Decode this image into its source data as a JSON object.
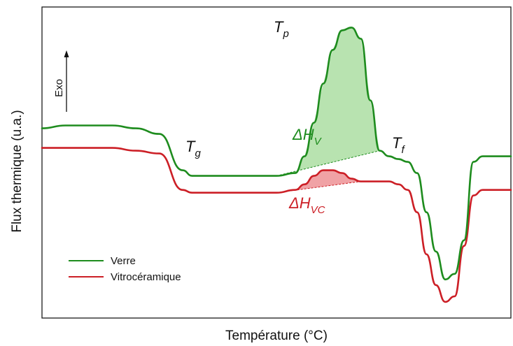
{
  "chart_data": {
    "type": "line",
    "title": "",
    "xlabel": "Température (°C)",
    "ylabel": "Flux thermique (u.a.)",
    "exo_label": "Exo",
    "x": [
      0,
      0.05,
      0.1,
      0.15,
      0.2,
      0.25,
      0.3,
      0.32,
      0.34,
      0.36,
      0.38,
      0.4,
      0.45,
      0.5,
      0.54,
      0.56,
      0.58,
      0.6,
      0.62,
      0.64,
      0.66,
      0.68,
      0.7,
      0.72,
      0.74,
      0.76,
      0.78,
      0.8,
      0.82,
      0.84,
      0.86,
      0.88,
      0.9,
      0.92,
      0.94,
      0.96,
      0.98,
      1.0
    ],
    "series": [
      {
        "name": "Verre",
        "color": "#1e8c1e",
        "values": [
          0.6,
          0.61,
          0.61,
          0.61,
          0.6,
          0.58,
          0.45,
          0.43,
          0.43,
          0.43,
          0.43,
          0.43,
          0.43,
          0.43,
          0.44,
          0.5,
          0.62,
          0.76,
          0.88,
          0.95,
          0.96,
          0.92,
          0.7,
          0.52,
          0.5,
          0.49,
          0.48,
          0.44,
          0.3,
          0.16,
          0.06,
          0.08,
          0.2,
          0.48,
          0.5,
          0.5,
          0.5,
          0.5
        ]
      },
      {
        "name": "Vitrocéramique",
        "color": "#cc1f26",
        "values": [
          0.53,
          0.53,
          0.53,
          0.53,
          0.52,
          0.51,
          0.38,
          0.37,
          0.37,
          0.37,
          0.37,
          0.37,
          0.37,
          0.37,
          0.38,
          0.4,
          0.43,
          0.45,
          0.45,
          0.44,
          0.42,
          0.41,
          0.41,
          0.41,
          0.41,
          0.4,
          0.38,
          0.3,
          0.15,
          0.04,
          -0.02,
          0.0,
          0.18,
          0.36,
          0.38,
          0.38,
          0.38,
          0.38
        ]
      }
    ],
    "annotations": [
      {
        "label": "T",
        "sub": "g"
      },
      {
        "label": "T",
        "sub": "p"
      },
      {
        "label": "T",
        "sub": "f"
      },
      {
        "label": "ΔH",
        "sub": "V"
      },
      {
        "label": "ΔH",
        "sub": "VC"
      }
    ],
    "legend": "bottom-left",
    "grid": false
  }
}
